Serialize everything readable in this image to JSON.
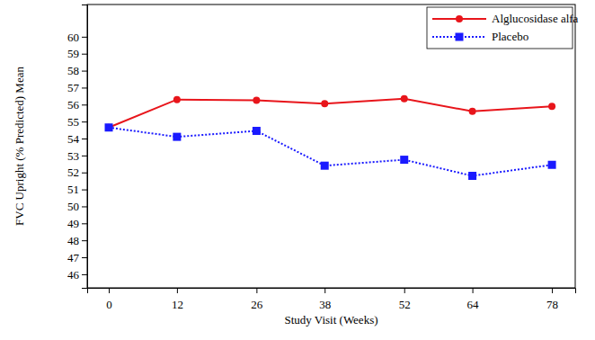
{
  "chart_data": {
    "type": "line",
    "x_label": "Study Visit (Weeks)",
    "y_label": "FVC Upright (% Predicted) Mean",
    "x": [
      0,
      12,
      26,
      38,
      52,
      64,
      78
    ],
    "series": [
      {
        "name": "Alglucosidase alfa",
        "color": "#e8151b",
        "marker": "circle",
        "line_style": "solid",
        "values": [
          54.65,
          56.3,
          56.25,
          56.05,
          56.35,
          55.6,
          55.9
        ]
      },
      {
        "name": "Placebo",
        "color": "#1a1aff",
        "marker": "square",
        "line_style": "dotted",
        "values": [
          54.65,
          54.1,
          54.45,
          52.4,
          52.75,
          51.8,
          52.45
        ]
      }
    ],
    "xlim": [
      -3.8,
      82.1
    ],
    "ylim": [
      45.2,
      61.9
    ],
    "xticks": [
      0,
      12,
      26,
      38,
      52,
      64,
      78
    ],
    "yticks": [
      46,
      47,
      48,
      49,
      50,
      51,
      52,
      53,
      54,
      55,
      56,
      57,
      58,
      59,
      60
    ],
    "grid": false,
    "legend": "upper right"
  }
}
